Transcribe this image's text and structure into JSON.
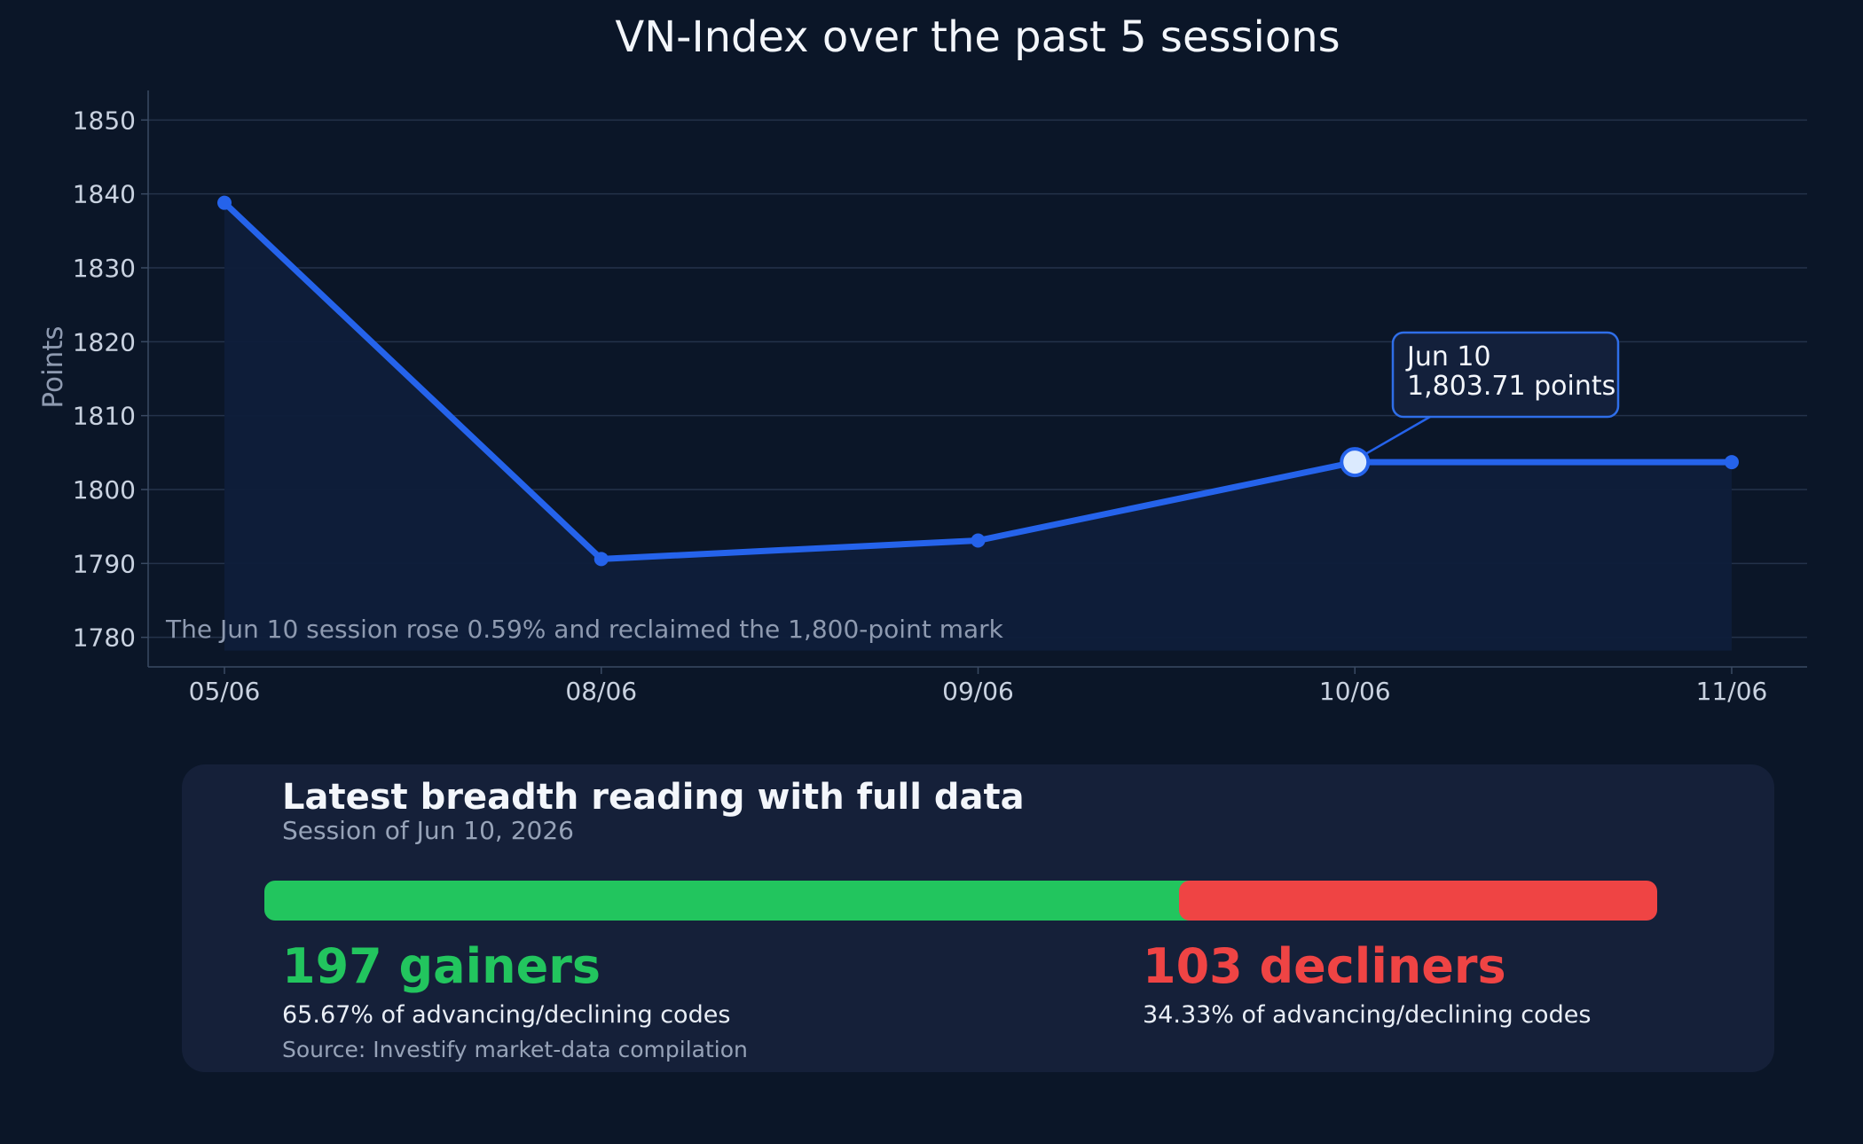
{
  "chart_data": {
    "type": "line",
    "title": "VN-Index over the past 5 sessions",
    "xlabel": "",
    "ylabel": "Points",
    "categories": [
      "05/06",
      "08/06",
      "09/06",
      "10/06",
      "11/06"
    ],
    "series": [
      {
        "values": [
          1838.8,
          1790.6,
          1793.1,
          1803.71,
          1803.71
        ]
      }
    ],
    "ylim": [
      1776,
      1854
    ],
    "yticks": [
      1780,
      1790,
      1800,
      1810,
      1820,
      1830,
      1840,
      1850
    ],
    "grid": true,
    "highlight": {
      "index": 3,
      "label_line1": "Jun 10",
      "label_line2": "1,803.71 points"
    },
    "annotation": "The Jun 10 session rose 0.59% and reclaimed the 1,800-point mark",
    "colors": {
      "line": "#2563eb",
      "area": "#0f1d3a",
      "grid": "#24324a",
      "axis": "#3a4a63",
      "highlight_fill": "#dbeafe",
      "callout_border": "#2f6ee8",
      "callout_bg": "#13203b"
    }
  },
  "breadth": {
    "title": "Latest breadth reading with full data",
    "subtitle": "Session of Jun 10, 2026",
    "gainers": {
      "count": 197,
      "label": "197 gainers",
      "share_text": "65.67% of advancing/declining codes",
      "share_fraction": 0.6567,
      "color": "#22c55e"
    },
    "decliners": {
      "count": 103,
      "label": "103 decliners",
      "share_text": "34.33% of advancing/declining codes",
      "share_fraction": 0.3433,
      "color": "#ef4444"
    },
    "source": "Source: Investify market-data compilation"
  }
}
